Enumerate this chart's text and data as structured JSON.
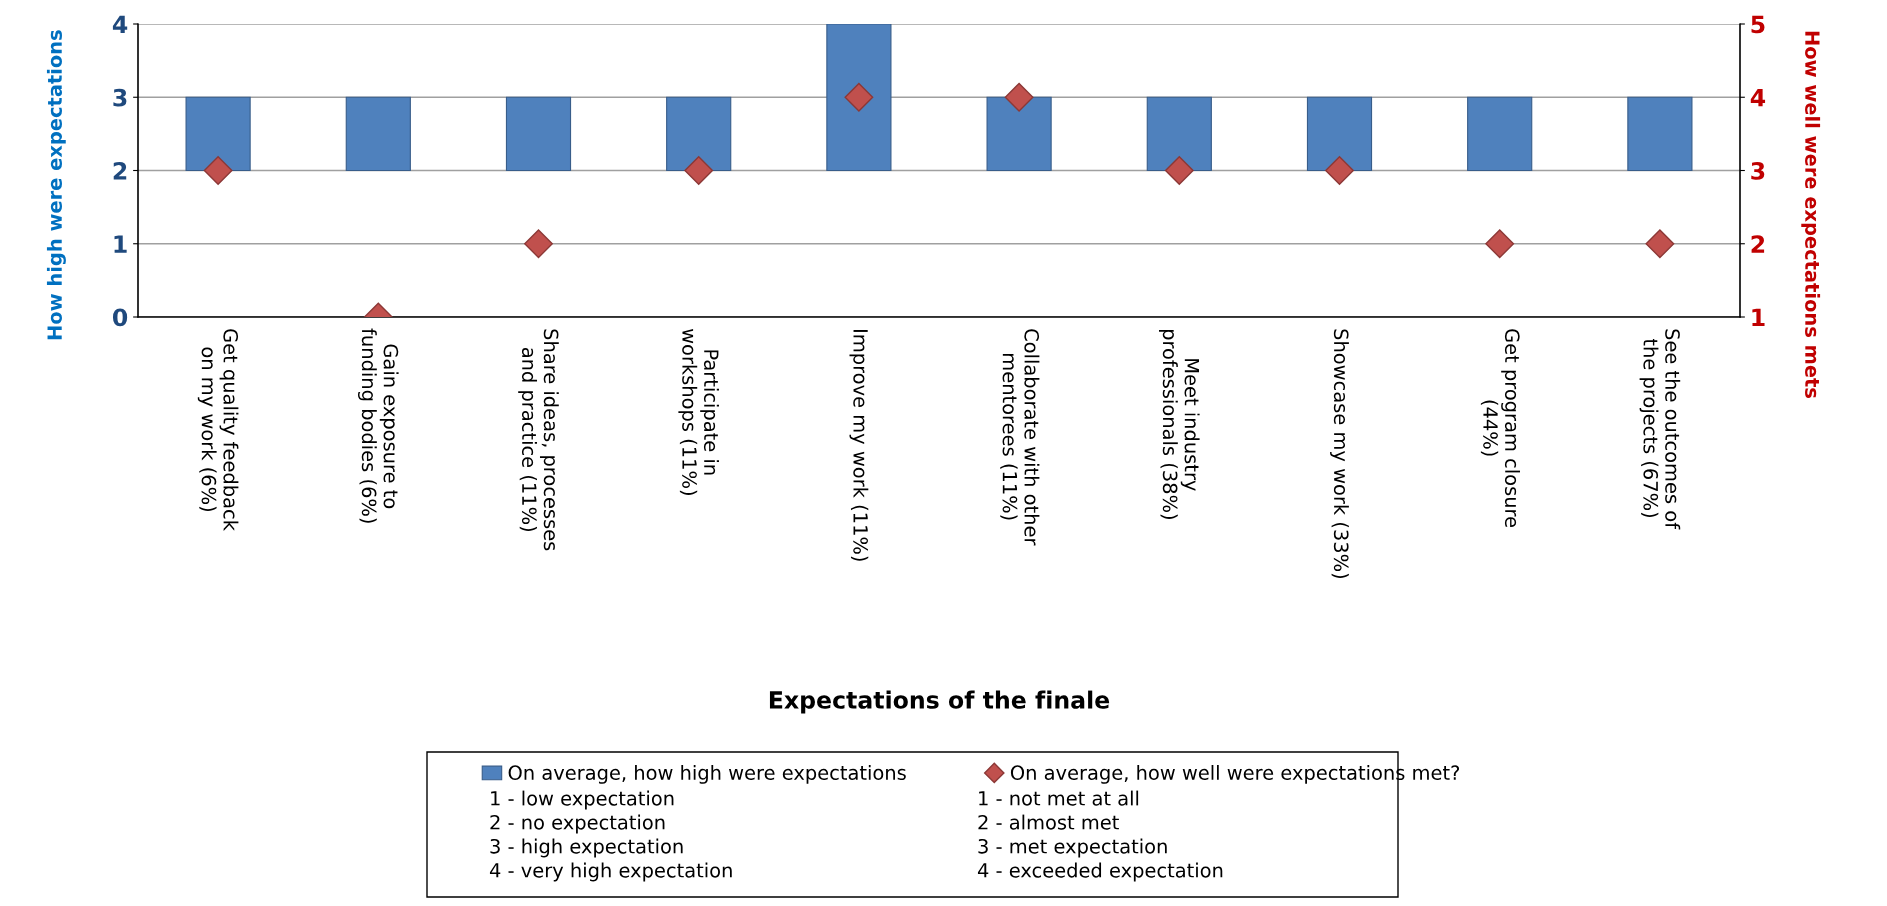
{
  "chart_data": {
    "type": "bar",
    "xlabel": "Expectations of the finale",
    "ylabel": "How high were expectations",
    "y2label": "How well were expectations mets",
    "categories": [
      "Get quality feedback on my work (6%)",
      "Gain exposure to funding bodies (6%)",
      "Share ideas, processes and practice (11%)",
      "Participate in workshops (11%)",
      "Improve my work (11%)",
      "Collaborate with other mentorees (11%)",
      "Meet industry professionals (38%)",
      "Showcase my work (33%)",
      "Get program closure (44%)",
      "See the outcomes of the projects (67%)"
    ],
    "series": [
      {
        "name": "On average, how high were expectations",
        "color": "#4f81bd",
        "base": [
          2,
          2,
          2,
          2,
          2,
          2,
          2,
          2,
          2,
          2
        ],
        "values": [
          1,
          1,
          1,
          1,
          2,
          1,
          1,
          1,
          1,
          1
        ]
      },
      {
        "name": "On average, how well were expectations met?",
        "type": "scatter",
        "axis": "y2",
        "marker": "diamond",
        "color": "#c0504d",
        "values": [
          3,
          1,
          2,
          3,
          4,
          4,
          3,
          3,
          2,
          2
        ]
      }
    ],
    "ylim": [
      0,
      4
    ],
    "yticks": [
      0,
      1,
      2,
      3,
      4
    ],
    "y2lim": [
      1,
      5
    ],
    "y2ticks": [
      1,
      2,
      3,
      4,
      5
    ],
    "grid": "y",
    "legend": "bottom",
    "annotations": [
      "1 - low expectation",
      "2 - no expectation",
      "3 - high expectation",
      "4 - very high expectation",
      "1 - not met at all",
      "2 - almost met",
      "3 - met expectation",
      "4 - exceeded expectation"
    ]
  }
}
